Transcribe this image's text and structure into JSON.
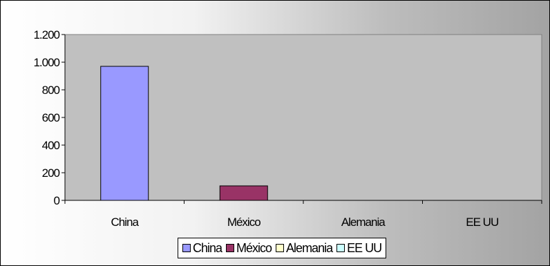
{
  "chart_data": {
    "type": "bar",
    "categories": [
      "China",
      "México",
      "Alemania",
      "EE UU"
    ],
    "values": [
      970,
      105,
      0,
      0
    ],
    "colors": [
      "#9999ff",
      "#993366",
      "#ffffcc",
      "#ccffff"
    ],
    "ylim": [
      0,
      1200
    ],
    "yticks": [
      0,
      200,
      400,
      600,
      800,
      1000,
      1200
    ],
    "ytick_labels": [
      "0",
      "200",
      "400",
      "600",
      "800",
      "1.000",
      "1.200"
    ],
    "plot_background": "#c0c0c0",
    "grid": false,
    "legend": {
      "position": "bottom",
      "entries": [
        "China",
        "México",
        "Alemania",
        "EE UU"
      ]
    },
    "title": "",
    "xlabel": "",
    "ylabel": ""
  }
}
